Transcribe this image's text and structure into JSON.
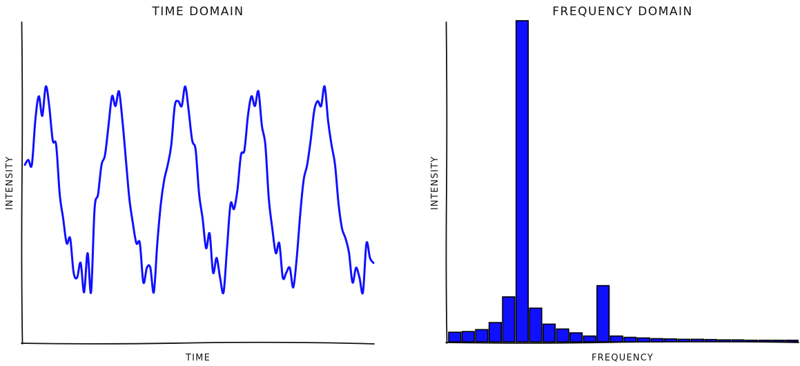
{
  "chart_data": [
    {
      "type": "line",
      "title": "TIME DOMAIN",
      "xlabel": "TIME",
      "ylabel": "INTENSITY",
      "ticks": "none",
      "grid": false,
      "color": "#1010ff",
      "xlim": [
        0,
        10
      ],
      "ylim": [
        -3.0,
        3.2
      ],
      "series": [
        {
          "x": [
            0,
            0.1,
            0.2,
            0.3,
            0.4,
            0.5,
            0.6,
            0.7,
            0.8,
            0.9,
            1.0,
            1.1,
            1.2,
            1.3,
            1.4,
            1.5,
            1.6,
            1.7,
            1.8,
            1.9,
            2.0,
            2.1,
            2.2,
            2.3,
            2.4,
            2.5,
            2.6,
            2.7,
            2.8,
            2.9,
            3.0,
            3.1,
            3.2,
            3.3,
            3.4,
            3.5,
            3.6,
            3.7,
            3.8,
            3.9,
            4.0,
            4.1,
            4.2,
            4.3,
            4.4,
            4.5,
            4.6,
            4.7,
            4.8,
            4.9,
            5.0,
            5.1,
            5.2,
            5.3,
            5.4,
            5.5,
            5.6,
            5.7,
            5.8,
            5.9,
            6.0,
            6.1,
            6.2,
            6.3,
            6.4,
            6.5,
            6.6,
            6.7,
            6.8,
            6.9,
            7.0,
            7.1,
            7.2,
            7.3,
            7.4,
            7.5,
            7.6,
            7.7,
            7.8,
            7.9,
            8.0,
            8.1,
            8.2,
            8.3,
            8.4,
            8.5,
            8.6,
            8.7,
            8.8,
            8.9,
            9.0,
            9.1,
            9.2,
            9.3,
            9.4,
            9.5,
            9.6,
            9.7,
            9.8,
            9.9,
            10.0
          ],
          "y": [
            0.4,
            0.5,
            0.4,
            1.3,
            1.8,
            1.4,
            2.0,
            1.6,
            0.9,
            0.8,
            -0.2,
            -0.7,
            -1.2,
            -1.1,
            -1.8,
            -1.9,
            -1.6,
            -2.2,
            -1.4,
            -2.2,
            -0.5,
            -0.2,
            0.4,
            0.6,
            1.2,
            1.8,
            1.6,
            1.9,
            1.3,
            0.5,
            -0.3,
            -0.8,
            -1.2,
            -1.2,
            -2.0,
            -1.7,
            -1.7,
            -2.2,
            -1.2,
            -0.4,
            0.1,
            0.4,
            0.8,
            1.6,
            1.7,
            1.6,
            2.0,
            1.5,
            0.9,
            0.7,
            -0.2,
            -0.7,
            -1.3,
            -1.0,
            -1.8,
            -1.5,
            -1.9,
            -2.2,
            -1.3,
            -0.4,
            -0.5,
            -0.1,
            0.6,
            0.7,
            1.4,
            1.8,
            1.6,
            1.9,
            1.2,
            0.8,
            -0.3,
            -0.9,
            -1.4,
            -1.2,
            -1.9,
            -1.8,
            -1.7,
            -2.1,
            -1.5,
            -0.6,
            0.1,
            0.4,
            0.9,
            1.5,
            1.7,
            1.6,
            2.0,
            1.3,
            0.8,
            0.4,
            -0.4,
            -0.9,
            -1.1,
            -1.4,
            -2.0,
            -1.7,
            -1.9,
            -2.2,
            -1.2,
            -1.5,
            -1.6
          ]
        }
      ]
    },
    {
      "type": "bar",
      "title": "FREQUENCY DOMAIN",
      "xlabel": "FREQUENCY",
      "ylabel": "INTENSITY",
      "ticks": "none",
      "grid": false,
      "color": "#1010ff",
      "ylim": [
        0,
        100
      ],
      "values": [
        3.0,
        3.2,
        3.8,
        6.0,
        14.0,
        100,
        10.5,
        5.5,
        4.0,
        2.8,
        1.8,
        17.5,
        1.8,
        1.4,
        1.2,
        1.0,
        0.9,
        0.8,
        0.8,
        0.7,
        0.6,
        0.6,
        0.5,
        0.5,
        0.5,
        0.5
      ]
    }
  ]
}
